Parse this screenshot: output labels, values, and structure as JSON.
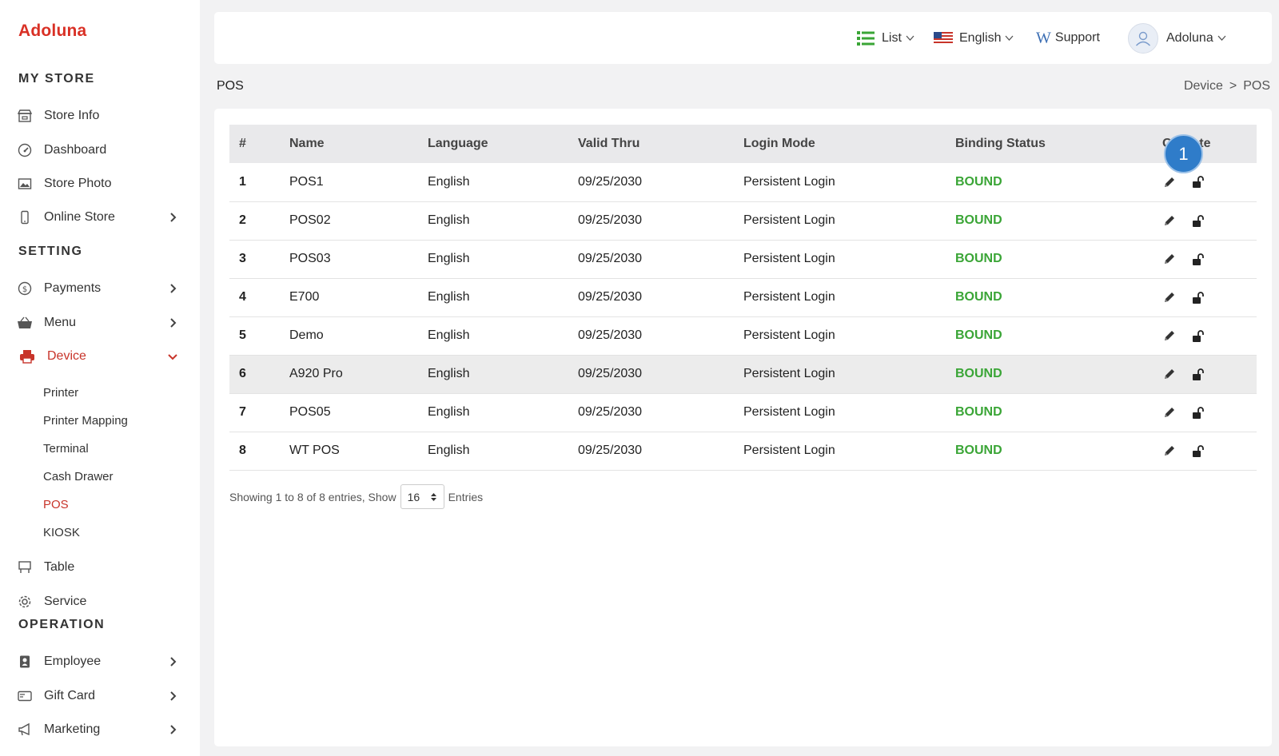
{
  "app": {
    "logo": "Adoluna"
  },
  "colors": {
    "brand": "#d93025",
    "active": "#c8342a",
    "bound": "#3aa536",
    "badge": "#2f7cc9"
  },
  "sidebar": {
    "sections": [
      "MY STORE",
      "SETTING",
      "OPERATION"
    ],
    "items": [
      {
        "label": "Store Info",
        "icon": "store-icon"
      },
      {
        "label": "Dashboard",
        "icon": "gauge-icon"
      },
      {
        "label": "Store Photo",
        "icon": "photo-icon"
      },
      {
        "label": "Online Store",
        "icon": "phone-icon"
      },
      {
        "label": "Payments",
        "icon": "dollar-icon"
      },
      {
        "label": "Menu",
        "icon": "basket-icon"
      },
      {
        "label": "Device",
        "icon": "printer-icon"
      },
      {
        "label": "Table",
        "icon": "table-icon"
      },
      {
        "label": "Service",
        "icon": "gear-icon"
      },
      {
        "label": "Employee",
        "icon": "badge-icon"
      },
      {
        "label": "Gift Card",
        "icon": "card-icon"
      },
      {
        "label": "Marketing",
        "icon": "megaphone-icon"
      }
    ],
    "device_sub": [
      "Printer",
      "Printer Mapping",
      "Terminal",
      "Cash Drawer",
      "POS",
      "KIOSK"
    ]
  },
  "topbar": {
    "list": "List",
    "language": "English",
    "support": "Support",
    "user": "Adoluna"
  },
  "page": {
    "title": "POS",
    "breadcrumb": [
      "Device",
      ">",
      "POS"
    ]
  },
  "table": {
    "headers": [
      "#",
      "Name",
      "Language",
      "Valid Thru",
      "Login Mode",
      "Binding Status",
      "Operate"
    ],
    "rows": [
      [
        "1",
        "POS1",
        "English",
        "09/25/2030",
        "Persistent Login",
        "BOUND"
      ],
      [
        "2",
        "POS02",
        "English",
        "09/25/2030",
        "Persistent Login",
        "BOUND"
      ],
      [
        "3",
        "POS03",
        "English",
        "09/25/2030",
        "Persistent Login",
        "BOUND"
      ],
      [
        "4",
        "E700",
        "English",
        "09/25/2030",
        "Persistent Login",
        "BOUND"
      ],
      [
        "5",
        "Demo",
        "English",
        "09/25/2030",
        "Persistent Login",
        "BOUND"
      ],
      [
        "6",
        "A920 Pro",
        "English",
        "09/25/2030",
        "Persistent Login",
        "BOUND"
      ],
      [
        "7",
        "POS05",
        "English",
        "09/25/2030",
        "Persistent Login",
        "BOUND"
      ],
      [
        "8",
        "WT POS",
        "English",
        "09/25/2030",
        "Persistent Login",
        "BOUND"
      ]
    ]
  },
  "footer": {
    "showing": "Showing 1 to 8 of 8 entries, Show",
    "page_size": "16",
    "entries": "Entries"
  },
  "annotation": {
    "badge": "1"
  }
}
